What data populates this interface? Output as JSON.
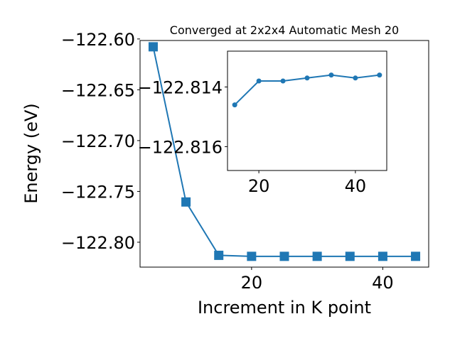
{
  "chart_data": [
    {
      "type": "line",
      "title": "Converged at 2x2x4 Automatic Mesh 20",
      "xlabel": "Increment in K point",
      "ylabel": "Energy (eV)",
      "xlim": [
        3,
        47
      ],
      "ylim": [
        -122.8245,
        -122.6015
      ],
      "x_ticks": [
        20,
        40
      ],
      "y_ticks": [
        -122.6,
        -122.65,
        -122.7,
        -122.75,
        -122.8
      ],
      "x_tick_labels": [
        "20",
        "40"
      ],
      "y_tick_labels": [
        "−122.60",
        "−122.65",
        "−122.70",
        "−122.75",
        "−122.80"
      ],
      "series": [
        {
          "marker": "square",
          "color": "#1f77b4",
          "x": [
            5,
            10,
            15,
            20,
            25,
            30,
            35,
            40,
            45
          ],
          "y": [
            -122.6077,
            -122.7604,
            -122.8129,
            -122.8139,
            -122.8139,
            -122.8139,
            -122.8139,
            -122.8139,
            -122.8139
          ]
        }
      ]
    },
    {
      "type": "line",
      "title": "",
      "xlabel": "",
      "ylabel": "",
      "xlim": [
        13.5,
        46.5
      ],
      "ylim": [
        -122.8168,
        -122.8128
      ],
      "x_ticks": [
        20,
        40
      ],
      "y_ticks": [
        -122.816,
        -122.814
      ],
      "x_tick_labels": [
        "20",
        "40"
      ],
      "y_tick_labels": [
        "−122.816",
        "−122.814"
      ],
      "series": [
        {
          "marker": "circle",
          "color": "#1f77b4",
          "x": [
            15,
            20,
            25,
            30,
            35,
            40,
            45
          ],
          "y": [
            -122.8146,
            -122.8138,
            -122.8138,
            -122.8137,
            -122.8136,
            -122.8137,
            -122.8136
          ]
        }
      ]
    }
  ]
}
